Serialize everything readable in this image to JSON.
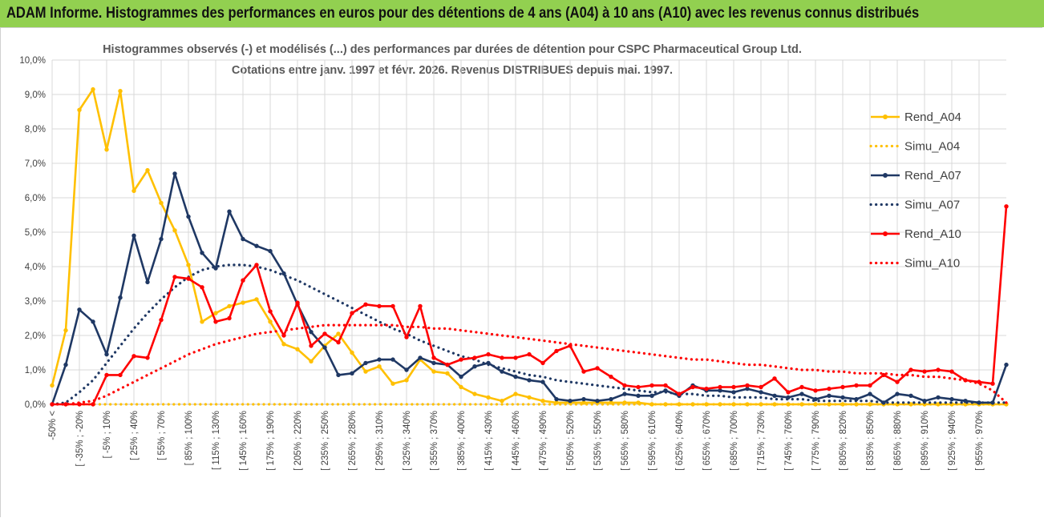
{
  "header": {
    "title": "ADAM Informe. Histogrammes des performances en euros pour des détentions de 4 ans (A04) à 10 ans (A10) avec les revenus connus distribués"
  },
  "chart_data": {
    "type": "line",
    "title": "Histogrammes observés (-) et modélisés (...) des performances par durées de détention pour CSPC Pharmaceutical Group Ltd.",
    "subtitle": "Cotations entre janv. 1997 et févr. 2026. Revenus DISTRIBUES depuis mai. 1997.",
    "ylim": [
      0,
      10
    ],
    "yticks": [
      "0,0%",
      "1,0%",
      "2,0%",
      "3,0%",
      "4,0%",
      "5,0%",
      "6,0%",
      "7,0%",
      "8,0%",
      "9,0%",
      "10,0%"
    ],
    "x_tick_labels": [
      "-50% <",
      "[ -35% ; -20%",
      "[ -5% ; 10%",
      "[ 25% ; 40%",
      "[ 55% ; 70%",
      "[ 85% ; 100%",
      "[ 115% ; 130%",
      "[ 145% ; 160%",
      "[ 175% ; 190%",
      "[ 205% ; 220%",
      "[ 235% ; 250%",
      "[ 265% ; 280%",
      "[ 295% ; 310%",
      "[ 325% ; 340%",
      "[ 355% ; 370%",
      "[ 385% ; 400%",
      "[ 415% ; 430%",
      "[ 445% ; 460%",
      "[ 475% ; 490%",
      "[ 505% ; 520%",
      "[ 535% ; 550%",
      "[ 565% ; 580%",
      "[ 595% ; 610%",
      "[ 625% ; 640%",
      "[ 655% ; 670%",
      "[ 685% ; 700%",
      "[ 715% ; 730%",
      "[ 745% ; 760%",
      "[ 775% ; 790%",
      "[ 805% ; 820%",
      "[ 835% ; 850%",
      "[ 865% ; 880%",
      "[ 895% ; 910%",
      "[ 925% ; 940%",
      "[ 955% ; 970%"
    ],
    "legend_position": "right",
    "series": [
      {
        "name": "Rend_A04",
        "style": "solid",
        "color": "#ffc000",
        "values": [
          0.55,
          2.15,
          8.55,
          9.15,
          7.4,
          9.1,
          6.2,
          6.8,
          5.85,
          5.05,
          4.05,
          2.4,
          2.65,
          2.85,
          2.95,
          3.05,
          2.4,
          1.75,
          1.6,
          1.25,
          1.7,
          2.05,
          1.5,
          0.95,
          1.1,
          0.6,
          0.7,
          1.3,
          0.95,
          0.9,
          0.5,
          0.3,
          0.2,
          0.1,
          0.3,
          0.2,
          0.1,
          0.05,
          0.05,
          0.05,
          0.05,
          0.05,
          0.05,
          0.05,
          0,
          0,
          0,
          0,
          0,
          0,
          0,
          0,
          0,
          0,
          0,
          0,
          0,
          0,
          0,
          0,
          0,
          0,
          0,
          0,
          0,
          0,
          0,
          0,
          0,
          0,
          0
        ]
      },
      {
        "name": "Simu_A04",
        "style": "dotted",
        "color": "#ffc000",
        "values": [
          0,
          0,
          0,
          0,
          0,
          0,
          0,
          0,
          0,
          0,
          0,
          0,
          0,
          0,
          0,
          0,
          0,
          0,
          0,
          0,
          0,
          0,
          0,
          0,
          0,
          0,
          0,
          0,
          0,
          0,
          0,
          0,
          0,
          0,
          0,
          0,
          0,
          0,
          0,
          0,
          0,
          0,
          0,
          0,
          0,
          0,
          0,
          0,
          0,
          0,
          0,
          0,
          0,
          0,
          0,
          0,
          0,
          0,
          0,
          0,
          0,
          0,
          0,
          0,
          0,
          0,
          0,
          0,
          0,
          0,
          0
        ]
      },
      {
        "name": "Rend_A07",
        "style": "solid",
        "color": "#1f3864",
        "values": [
          0,
          1.15,
          2.75,
          2.4,
          1.45,
          3.1,
          4.9,
          3.55,
          4.8,
          6.7,
          5.45,
          4.4,
          3.95,
          5.6,
          4.8,
          4.6,
          4.45,
          3.8,
          2.9,
          2.1,
          1.65,
          0.85,
          0.9,
          1.2,
          1.3,
          1.3,
          1.0,
          1.35,
          1.2,
          1.15,
          0.8,
          1.1,
          1.2,
          0.95,
          0.8,
          0.7,
          0.65,
          0.15,
          0.1,
          0.15,
          0.1,
          0.15,
          0.3,
          0.25,
          0.25,
          0.4,
          0.25,
          0.55,
          0.4,
          0.4,
          0.35,
          0.45,
          0.35,
          0.25,
          0.2,
          0.3,
          0.15,
          0.25,
          0.2,
          0.15,
          0.3,
          0.05,
          0.3,
          0.25,
          0.1,
          0.2,
          0.15,
          0.1,
          0.05,
          0.05,
          1.15
        ]
      },
      {
        "name": "Simu_A07",
        "style": "dotted",
        "color": "#1f3864",
        "values": [
          0,
          0.05,
          0.35,
          0.7,
          1.2,
          1.7,
          2.2,
          2.65,
          3.05,
          3.4,
          3.7,
          3.9,
          4.0,
          4.05,
          4.05,
          4.0,
          3.9,
          3.75,
          3.6,
          3.4,
          3.2,
          3.0,
          2.8,
          2.6,
          2.4,
          2.2,
          2.05,
          1.85,
          1.7,
          1.55,
          1.4,
          1.3,
          1.15,
          1.05,
          0.95,
          0.85,
          0.8,
          0.7,
          0.65,
          0.6,
          0.55,
          0.5,
          0.45,
          0.4,
          0.35,
          0.35,
          0.3,
          0.3,
          0.25,
          0.25,
          0.2,
          0.2,
          0.2,
          0.15,
          0.15,
          0.15,
          0.1,
          0.1,
          0.1,
          0.1,
          0.1,
          0.05,
          0.05,
          0.05,
          0.05,
          0.05,
          0.05,
          0.05,
          0.05,
          0.05,
          0.05
        ]
      },
      {
        "name": "Rend_A10",
        "style": "solid",
        "color": "#ff0000",
        "values": [
          0,
          0,
          0,
          0,
          0.85,
          0.85,
          1.4,
          1.35,
          2.45,
          3.7,
          3.65,
          3.4,
          2.4,
          2.5,
          3.6,
          4.05,
          2.7,
          2.0,
          2.95,
          1.7,
          2.05,
          1.8,
          2.65,
          2.9,
          2.85,
          2.85,
          1.95,
          2.85,
          1.35,
          1.15,
          1.3,
          1.35,
          1.45,
          1.35,
          1.35,
          1.45,
          1.2,
          1.55,
          1.7,
          0.95,
          1.05,
          0.8,
          0.55,
          0.5,
          0.55,
          0.55,
          0.3,
          0.5,
          0.45,
          0.5,
          0.5,
          0.55,
          0.5,
          0.75,
          0.35,
          0.5,
          0.4,
          0.45,
          0.5,
          0.55,
          0.55,
          0.85,
          0.65,
          1.0,
          0.95,
          1.0,
          0.95,
          0.7,
          0.65,
          0.6,
          5.75
        ]
      },
      {
        "name": "Simu_A10",
        "style": "dotted",
        "color": "#ff0000",
        "values": [
          0,
          0,
          0.05,
          0.1,
          0.25,
          0.45,
          0.65,
          0.85,
          1.05,
          1.25,
          1.45,
          1.6,
          1.75,
          1.85,
          1.95,
          2.05,
          2.1,
          2.15,
          2.2,
          2.25,
          2.3,
          2.3,
          2.3,
          2.3,
          2.3,
          2.3,
          2.25,
          2.25,
          2.2,
          2.2,
          2.15,
          2.1,
          2.05,
          2.0,
          1.95,
          1.9,
          1.85,
          1.8,
          1.75,
          1.7,
          1.65,
          1.6,
          1.55,
          1.5,
          1.45,
          1.4,
          1.35,
          1.3,
          1.3,
          1.25,
          1.2,
          1.15,
          1.15,
          1.1,
          1.05,
          1.0,
          1.0,
          0.95,
          0.95,
          0.9,
          0.9,
          0.9,
          0.85,
          0.85,
          0.8,
          0.8,
          0.75,
          0.7,
          0.6,
          0.4,
          0.05
        ]
      }
    ]
  }
}
